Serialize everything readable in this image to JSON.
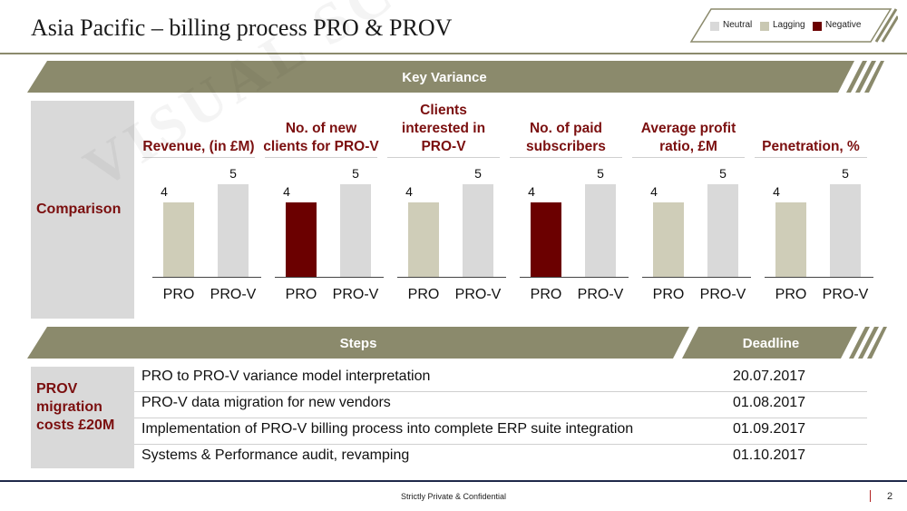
{
  "title": "Asia Pacific – billing process PRO & PROV",
  "legend": {
    "items": [
      {
        "label": "Neutral",
        "color": "#d9d9d9"
      },
      {
        "label": "Lagging",
        "color": "#c9c8b2"
      },
      {
        "label": "Negative",
        "color": "#6b0000"
      }
    ]
  },
  "key_variance": {
    "band_label": "Key Variance",
    "row_label": "Comparison"
  },
  "colors": {
    "band": "#8b8a6c",
    "accent_text": "#7b0f0f",
    "neutral": "#d9d9d9",
    "lagging": "#cfcdb8",
    "negative": "#6b0000"
  },
  "chart_data": [
    {
      "type": "bar",
      "title": "Revenue, (in £M)",
      "categories": [
        "PRO",
        "PRO-V"
      ],
      "values": [
        4,
        5
      ],
      "colors": [
        "lagging",
        "neutral"
      ]
    },
    {
      "type": "bar",
      "title": "No. of new clients for PRO-V",
      "categories": [
        "PRO",
        "PRO-V"
      ],
      "values": [
        4,
        5
      ],
      "colors": [
        "negative",
        "neutral"
      ]
    },
    {
      "type": "bar",
      "title": "Clients interested in PRO-V",
      "categories": [
        "PRO",
        "PRO-V"
      ],
      "values": [
        4,
        5
      ],
      "colors": [
        "lagging",
        "neutral"
      ]
    },
    {
      "type": "bar",
      "title": "No. of paid subscribers",
      "categories": [
        "PRO",
        "PRO-V"
      ],
      "values": [
        4,
        5
      ],
      "colors": [
        "negative",
        "neutral"
      ]
    },
    {
      "type": "bar",
      "title": "Average profit ratio, £M",
      "categories": [
        "PRO",
        "PRO-V"
      ],
      "values": [
        4,
        5
      ],
      "colors": [
        "lagging",
        "neutral"
      ]
    },
    {
      "type": "bar",
      "title": "Penetration, %",
      "categories": [
        "PRO",
        "PRO-V"
      ],
      "values": [
        4,
        5
      ],
      "colors": [
        "lagging",
        "neutral"
      ]
    }
  ],
  "steps": {
    "band_label": "Steps",
    "deadline_label": "Deadline",
    "row_label": "PROV migration costs £20M",
    "items": [
      {
        "step": "PRO to PRO-V variance model interpretation",
        "deadline": "20.07.2017"
      },
      {
        "step": "PRO-V data migration for new vendors",
        "deadline": "01.08.2017"
      },
      {
        "step": "Implementation of PRO-V billing process into complete ERP suite integration",
        "deadline": "01.09.2017"
      },
      {
        "step": "Systems & Performance audit, revamping",
        "deadline": "01.10.2017"
      }
    ]
  },
  "footer": {
    "text": "Strictly Private & Confidential",
    "page": "2"
  },
  "watermark": "VISUAL SCULPTORS"
}
